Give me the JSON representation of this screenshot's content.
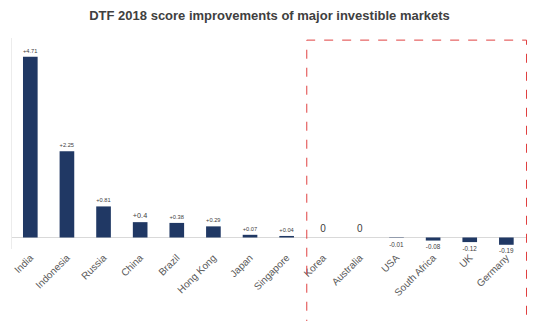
{
  "chart_data": {
    "type": "bar",
    "title": "DTF 2018 score improvements of major investible markets",
    "categories": [
      "India",
      "Indonesia",
      "Russia",
      "China",
      "Brazil",
      "Hong Kong",
      "Japan",
      "Singapore",
      "Korea",
      "Australia",
      "USA",
      "South Africa",
      "UK",
      "Germany"
    ],
    "values": [
      4.71,
      2.25,
      0.81,
      0.4,
      0.38,
      0.29,
      0.07,
      0.04,
      0,
      0,
      -0.01,
      -0.08,
      -0.12,
      -0.19
    ],
    "value_labels": [
      "+4.71",
      "+2.25",
      "+0.81",
      "+0.4",
      "+0.38",
      "+0.29",
      "+0.07",
      "+0.04",
      "0",
      "0",
      "-0.01",
      "-0.08",
      "-0.12",
      "-0.19"
    ],
    "color": "#203864",
    "ylim": [
      -0.3,
      5.2
    ],
    "grid": false,
    "data_labels": true,
    "tick_labels": "x"
  }
}
